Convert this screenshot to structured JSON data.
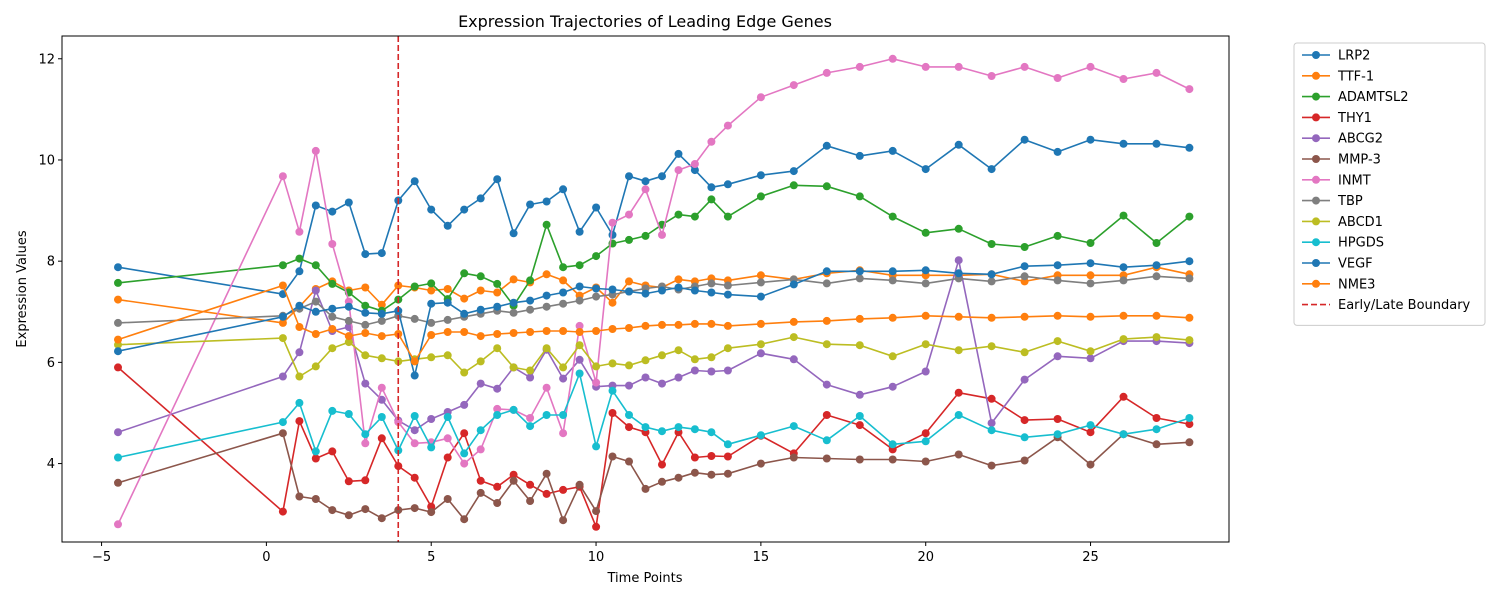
{
  "chart_data": {
    "type": "line",
    "title": "Expression Trajectories of Leading Edge Genes",
    "xlabel": "Time Points",
    "ylabel": "Expression Values",
    "xlim": [
      -6.2,
      29.2
    ],
    "ylim": [
      2.45,
      12.45
    ],
    "xticks": [
      -5,
      0,
      5,
      10,
      15,
      20,
      25
    ],
    "yticks": [
      4,
      6,
      8,
      10,
      12
    ],
    "boundary": {
      "x": 4,
      "label": "Early/Late Boundary",
      "color": "#d62728"
    },
    "legend_position": "outside-right",
    "x": [
      -4.5,
      0.5,
      1,
      1.5,
      2,
      2.5,
      3,
      3.5,
      4,
      4.5,
      5,
      5.5,
      6,
      6.5,
      7,
      7.5,
      8,
      8.5,
      9,
      9.5,
      10,
      10.5,
      11,
      11.5,
      12,
      12.5,
      13,
      13.5,
      14,
      15,
      16,
      17,
      18,
      19,
      20,
      21,
      22,
      23,
      24,
      25,
      26,
      27,
      28
    ],
    "series": [
      {
        "name": "LRP2",
        "color": "#1f77b4",
        "values": [
          7.88,
          7.35,
          7.8,
          9.1,
          8.98,
          9.16,
          8.14,
          8.16,
          9.2,
          9.58,
          9.02,
          8.7,
          9.02,
          9.24,
          9.62,
          8.55,
          9.12,
          9.18,
          9.42,
          8.58,
          9.06,
          8.52,
          9.68,
          9.58,
          9.68,
          10.12,
          9.8,
          9.46,
          9.52,
          9.7,
          9.78,
          10.28,
          10.08,
          10.18,
          9.82,
          10.3,
          9.82,
          10.4,
          10.16,
          10.4,
          10.32,
          10.32,
          10.24
        ]
      },
      {
        "name": "TTF-1",
        "color": "#ff7f0e",
        "values": [
          7.24,
          6.78,
          7.1,
          7.45,
          7.6,
          7.42,
          7.48,
          7.14,
          7.52,
          7.48,
          7.42,
          7.45,
          7.26,
          7.42,
          7.38,
          7.64,
          7.58,
          7.74,
          7.62,
          7.32,
          7.48,
          7.18,
          7.6,
          7.52,
          7.48,
          7.64,
          7.6,
          7.66,
          7.62,
          7.72,
          7.64,
          7.76,
          7.82,
          7.72,
          7.72,
          7.72,
          7.74,
          7.6,
          7.72,
          7.72,
          7.72,
          7.88,
          7.74
        ]
      },
      {
        "name": "ADAMTSL2",
        "color": "#2ca02c",
        "values": [
          7.57,
          7.92,
          8.05,
          7.92,
          7.55,
          7.38,
          7.12,
          7.02,
          7.24,
          7.5,
          7.56,
          7.25,
          7.76,
          7.7,
          7.55,
          7.12,
          7.62,
          8.72,
          7.88,
          7.92,
          8.1,
          8.35,
          8.42,
          8.5,
          8.72,
          8.92,
          8.88,
          9.22,
          8.88,
          9.28,
          9.5,
          9.48,
          9.28,
          8.88,
          8.56,
          8.64,
          8.34,
          8.28,
          8.5,
          8.36,
          8.9,
          8.36,
          8.88
        ]
      },
      {
        "name": "THY1",
        "color": "#d62728",
        "values": [
          5.9,
          3.05,
          4.84,
          4.1,
          4.24,
          3.65,
          3.67,
          4.5,
          3.95,
          3.72,
          3.15,
          4.12,
          4.6,
          3.66,
          3.54,
          3.78,
          3.58,
          3.4,
          3.48,
          3.54,
          2.75,
          5.0,
          4.72,
          4.62,
          3.98,
          4.62,
          4.12,
          4.15,
          4.14,
          4.55,
          4.2,
          4.96,
          4.76,
          4.28,
          4.6,
          5.4,
          5.28,
          4.86,
          4.88,
          4.62,
          5.32,
          4.9,
          4.78
        ]
      },
      {
        "name": "ABCG2",
        "color": "#9467bd",
        "values": [
          4.62,
          5.72,
          6.2,
          7.42,
          6.62,
          6.7,
          5.58,
          5.26,
          4.85,
          4.66,
          4.88,
          5.02,
          5.16,
          5.58,
          5.48,
          5.9,
          5.7,
          6.25,
          5.68,
          6.05,
          5.52,
          5.54,
          5.54,
          5.7,
          5.58,
          5.7,
          5.84,
          5.82,
          5.84,
          6.18,
          6.06,
          5.56,
          5.36,
          5.52,
          5.82,
          8.02,
          4.8,
          5.66,
          6.12,
          6.08,
          6.42,
          6.42,
          6.38
        ]
      },
      {
        "name": "MMP-3",
        "color": "#8c564b",
        "values": [
          3.62,
          4.6,
          3.35,
          3.3,
          3.08,
          2.98,
          3.1,
          2.92,
          3.08,
          3.12,
          3.04,
          3.3,
          2.9,
          3.42,
          3.22,
          3.66,
          3.26,
          3.8,
          2.88,
          3.58,
          3.06,
          4.14,
          4.04,
          3.5,
          3.64,
          3.72,
          3.82,
          3.78,
          3.8,
          4.0,
          4.12,
          4.1,
          4.08,
          4.08,
          4.04,
          4.18,
          3.96,
          4.06,
          4.52,
          3.98,
          4.58,
          4.38,
          4.42
        ]
      },
      {
        "name": "INMT",
        "color": "#e377c2",
        "values": [
          2.8,
          9.68,
          8.58,
          10.18,
          8.34,
          7.2,
          4.4,
          5.5,
          4.82,
          4.4,
          4.42,
          4.5,
          4.0,
          4.28,
          5.08,
          5.06,
          4.9,
          5.5,
          4.6,
          6.72,
          5.6,
          8.76,
          8.92,
          9.42,
          8.52,
          9.8,
          9.92,
          10.36,
          10.68,
          11.24,
          11.48,
          11.72,
          11.84,
          12.0,
          11.84,
          11.84,
          11.66,
          11.84,
          11.62,
          11.84,
          11.6,
          11.72,
          11.4
        ]
      },
      {
        "name": "TBP",
        "color": "#7f7f7f",
        "values": [
          6.78,
          6.92,
          7.06,
          7.2,
          6.9,
          6.82,
          6.74,
          6.82,
          6.92,
          6.86,
          6.78,
          6.84,
          6.9,
          6.96,
          7.02,
          6.98,
          7.04,
          7.1,
          7.16,
          7.22,
          7.3,
          7.34,
          7.4,
          7.46,
          7.5,
          7.44,
          7.5,
          7.56,
          7.52,
          7.58,
          7.64,
          7.56,
          7.66,
          7.62,
          7.56,
          7.66,
          7.6,
          7.7,
          7.62,
          7.56,
          7.62,
          7.7,
          7.66
        ]
      },
      {
        "name": "ABCD1",
        "color": "#bcbd22",
        "values": [
          6.35,
          6.48,
          5.72,
          5.92,
          6.28,
          6.4,
          6.14,
          6.08,
          6.02,
          6.06,
          6.1,
          6.14,
          5.8,
          6.02,
          6.28,
          5.9,
          5.84,
          6.28,
          5.9,
          6.34,
          5.92,
          5.98,
          5.94,
          6.04,
          6.14,
          6.24,
          6.06,
          6.1,
          6.28,
          6.36,
          6.5,
          6.36,
          6.34,
          6.12,
          6.36,
          6.24,
          6.32,
          6.2,
          6.42,
          6.22,
          6.46,
          6.5,
          6.44
        ]
      },
      {
        "name": "HPGDS",
        "color": "#17becf",
        "values": [
          4.12,
          4.82,
          5.2,
          4.24,
          5.04,
          4.98,
          4.58,
          4.92,
          4.26,
          4.94,
          4.32,
          4.92,
          4.2,
          4.66,
          4.96,
          5.06,
          4.74,
          4.96,
          4.96,
          5.78,
          4.34,
          5.44,
          4.96,
          4.72,
          4.64,
          4.72,
          4.68,
          4.62,
          4.38,
          4.56,
          4.74,
          4.46,
          4.94,
          4.38,
          4.44,
          4.96,
          4.66,
          4.52,
          4.58,
          4.76,
          4.58,
          4.68,
          4.9
        ]
      },
      {
        "name": "VEGF",
        "color": "#1f77b4",
        "values": [
          6.22,
          6.9,
          7.12,
          7.0,
          7.06,
          7.1,
          6.98,
          6.96,
          7.02,
          5.74,
          7.16,
          7.18,
          6.96,
          7.04,
          7.1,
          7.18,
          7.22,
          7.32,
          7.38,
          7.5,
          7.46,
          7.44,
          7.4,
          7.36,
          7.42,
          7.48,
          7.42,
          7.38,
          7.34,
          7.3,
          7.54,
          7.8,
          7.8,
          7.8,
          7.82,
          7.76,
          7.74,
          7.9,
          7.92,
          7.96,
          7.88,
          7.92,
          8.0
        ]
      },
      {
        "name": "NME3",
        "color": "#ff7f0e",
        "values": [
          6.45,
          7.52,
          6.7,
          6.56,
          6.66,
          6.52,
          6.58,
          6.52,
          6.56,
          6.02,
          6.54,
          6.6,
          6.6,
          6.52,
          6.56,
          6.58,
          6.6,
          6.62,
          6.62,
          6.6,
          6.62,
          6.66,
          6.68,
          6.72,
          6.74,
          6.74,
          6.76,
          6.76,
          6.72,
          6.76,
          6.8,
          6.82,
          6.86,
          6.88,
          6.92,
          6.9,
          6.88,
          6.9,
          6.92,
          6.9,
          6.92,
          6.92,
          6.88
        ]
      }
    ]
  }
}
